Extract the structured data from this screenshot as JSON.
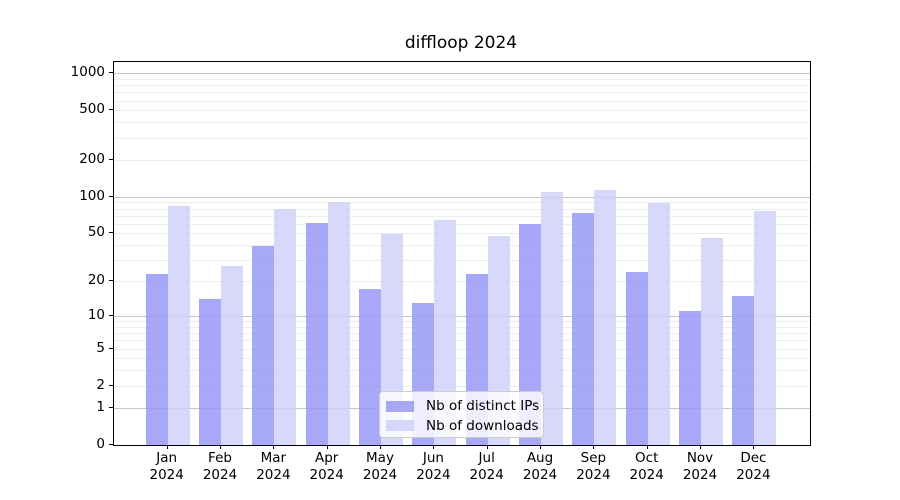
{
  "chart_data": {
    "type": "bar",
    "title": "diffloop 2024",
    "y_scale": "log1p",
    "categories": [
      "Jan",
      "Feb",
      "Mar",
      "Apr",
      "May",
      "Jun",
      "Jul",
      "Aug",
      "Sep",
      "Oct",
      "Nov",
      "Dec"
    ],
    "category_subline": "2024",
    "series": [
      {
        "name": "Nb of distinct IPs",
        "color": "rgba(146,146,247,0.8)",
        "values": [
          23,
          14,
          39,
          61,
          17,
          13,
          23,
          60,
          74,
          24,
          11,
          15
        ]
      },
      {
        "name": "Nb of downloads",
        "color": "rgba(206,206,250,0.8)",
        "values": [
          84,
          27,
          79,
          90,
          49,
          65,
          48,
          109,
          114,
          89,
          46,
          77
        ]
      }
    ],
    "y_ticks": [
      0,
      1,
      2,
      5,
      10,
      20,
      50,
      100,
      200,
      500,
      1000
    ],
    "ylim": [
      0,
      1230
    ],
    "xlabel": "",
    "ylabel": "",
    "grid": {
      "major_values": [
        1,
        10,
        100,
        1000
      ],
      "minor_values": [
        2,
        3,
        4,
        5,
        6,
        7,
        8,
        9,
        20,
        30,
        40,
        50,
        60,
        70,
        80,
        90,
        200,
        300,
        400,
        500,
        600,
        700,
        800,
        900
      ],
      "major_color": "#c8c8c8",
      "minor_color": "#ededed"
    },
    "legend": {
      "position": "lower center",
      "border_color": "#cccccc",
      "background": "rgba(255,255,255,0.8)"
    }
  }
}
